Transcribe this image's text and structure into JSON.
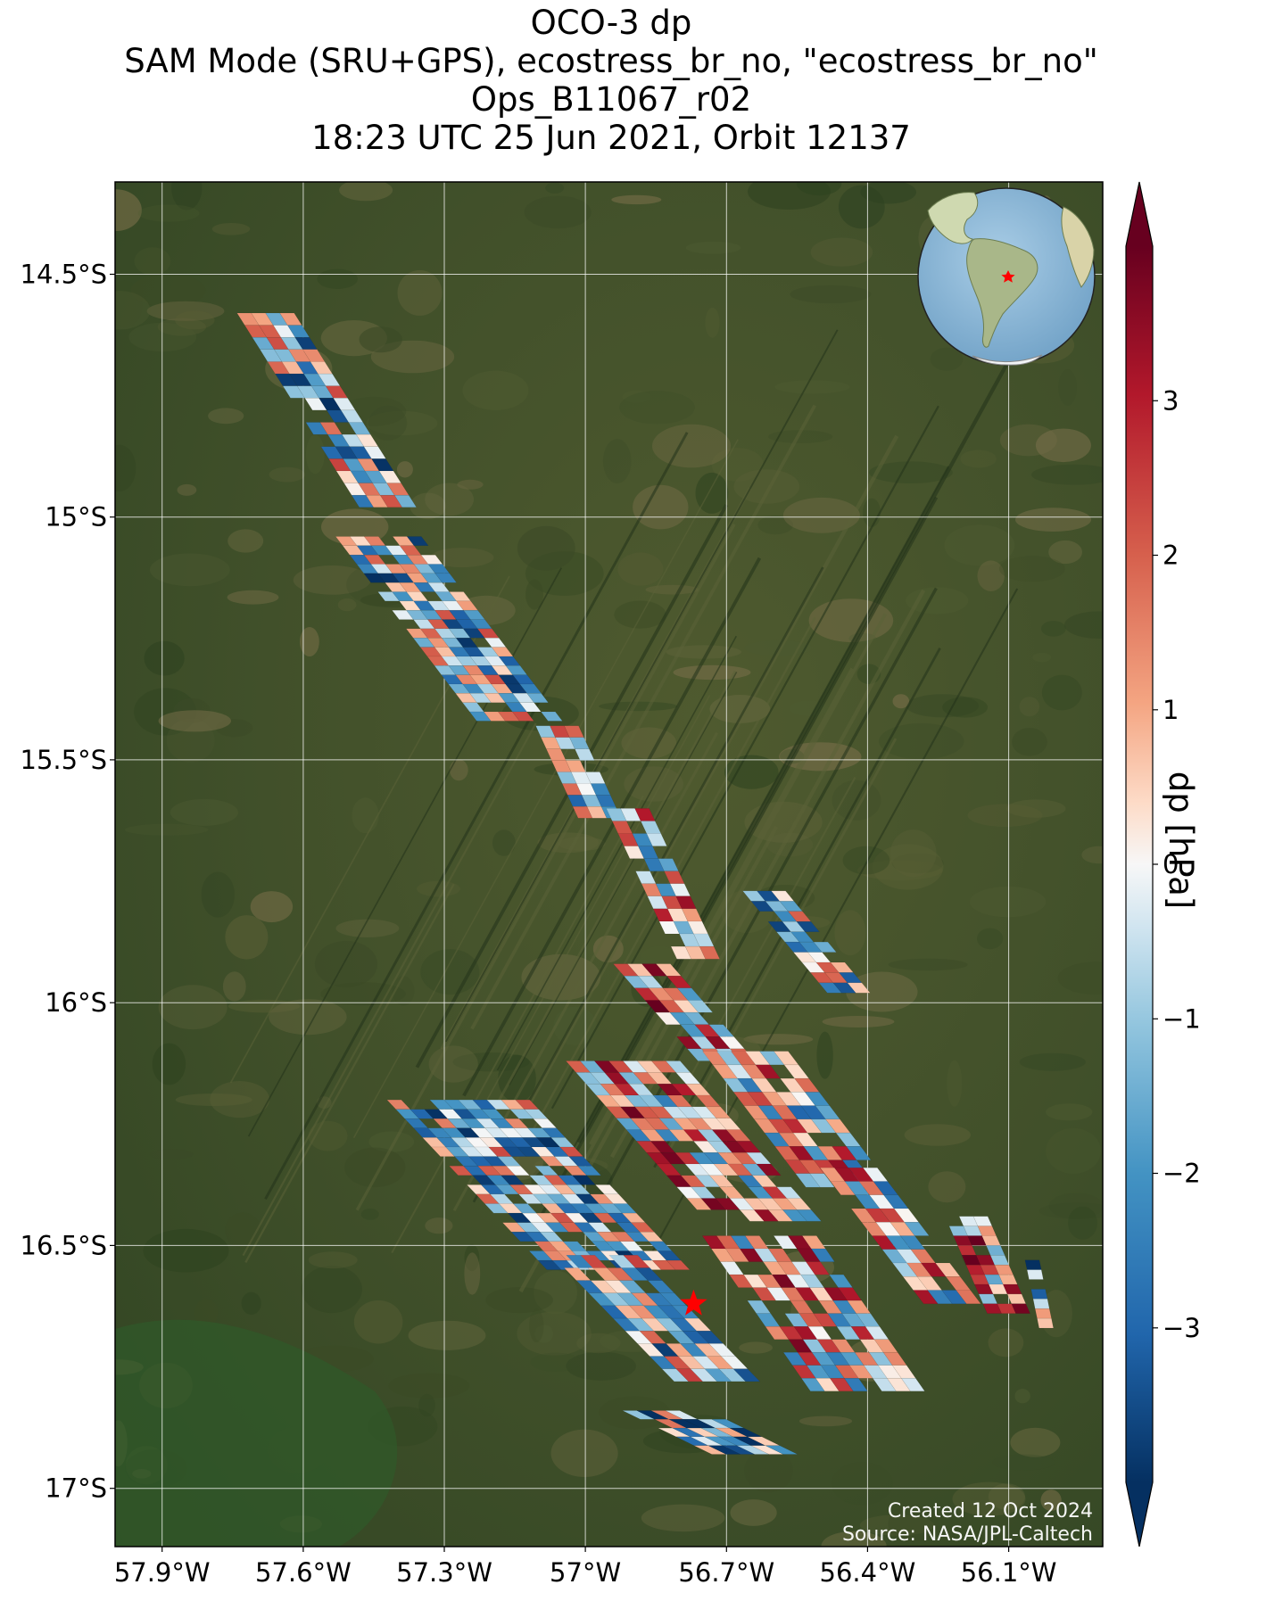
{
  "title": {
    "line1": "OCO-3 dp",
    "line2": "SAM Mode (SRU+GPS), ecostress_br_no, \"ecostress_br_no\"",
    "line3": "Ops_B11067_r02",
    "line4": "18:23 UTC 25 Jun 2021, Orbit 12137"
  },
  "credits": {
    "created": "Created 12 Oct 2024",
    "source": "Source: NASA/JPL-Caltech"
  },
  "colors": {
    "negative_extreme": "#053061",
    "neutral": "#f7f7f7",
    "positive_extreme": "#67001f",
    "target_marker": "#ff0000",
    "grid": "#ffffff"
  },
  "chart_data": {
    "type": "heatmap",
    "title": "OCO-3 dp",
    "variable": "dp",
    "colorbar_label": "dp [hPa]",
    "colormap": "RdBu_r",
    "colorbar_range": [
      -4,
      4
    ],
    "colorbar_extend": "both",
    "colorbar_ticks": [
      3,
      2,
      1,
      0,
      -1,
      -2,
      -3
    ],
    "colorbar_tick_labels": [
      "3",
      "2",
      "1",
      "0",
      "−1",
      "−2",
      "−3"
    ],
    "xlim": [
      -58.0,
      -55.9
    ],
    "ylim": [
      -17.12,
      -14.31
    ],
    "x_ticks": [
      -57.9,
      -57.6,
      -57.3,
      -57.0,
      -56.7,
      -56.4,
      -56.1
    ],
    "x_tick_labels": [
      "57.9°W",
      "57.6°W",
      "57.3°W",
      "57°W",
      "56.7°W",
      "56.4°W",
      "56.1°W"
    ],
    "y_ticks": [
      -14.5,
      -15.0,
      -15.5,
      -16.0,
      -16.5,
      -17.0
    ],
    "y_tick_labels": [
      "14.5°S",
      "15°S",
      "15.5°S",
      "16°S",
      "16.5°S",
      "17°S"
    ],
    "grid": true,
    "background": "satellite imagery",
    "inset": "globe centered on South America with red star at target",
    "target": {
      "lon": -56.77,
      "lat": -16.62,
      "marker": "star"
    },
    "swaths": [
      {
        "lon0": -57.68,
        "lat0": -14.58,
        "lon1": -57.42,
        "lat1": -14.98,
        "rows": 16,
        "cols": 4,
        "bias": -0.8
      },
      {
        "lon0": -57.44,
        "lat0": -15.04,
        "lon1": -57.14,
        "lat1": -15.42,
        "rows": 20,
        "cols": 6,
        "bias": -0.9
      },
      {
        "lon0": -57.06,
        "lat0": -15.43,
        "lon1": -56.97,
        "lat1": -15.62,
        "rows": 8,
        "cols": 3,
        "bias": 0.2
      },
      {
        "lon0": -56.91,
        "lat0": -15.6,
        "lon1": -56.76,
        "lat1": -15.91,
        "rows": 12,
        "cols": 3,
        "bias": 0.6
      },
      {
        "lon0": -56.62,
        "lat0": -15.77,
        "lon1": -56.44,
        "lat1": -15.98,
        "rows": 10,
        "cols": 3,
        "bias": -0.8
      },
      {
        "lon0": -56.88,
        "lat0": -15.92,
        "lon1": -56.7,
        "lat1": -16.12,
        "rows": 8,
        "cols": 4,
        "bias": 1.2
      },
      {
        "lon0": -57.27,
        "lat0": -16.2,
        "lon1": -56.93,
        "lat1": -16.55,
        "rows": 18,
        "cols": 10,
        "bias": -0.9
      },
      {
        "lon0": -56.92,
        "lat0": -16.12,
        "lon1": -56.62,
        "lat1": -16.45,
        "rows": 14,
        "cols": 8,
        "bias": 0.7
      },
      {
        "lon0": -56.66,
        "lat0": -16.1,
        "lon1": -56.44,
        "lat1": -16.38,
        "rows": 10,
        "cols": 6,
        "bias": 0.2
      },
      {
        "lon0": -56.63,
        "lat0": -16.48,
        "lon1": -56.4,
        "lat1": -16.8,
        "rows": 12,
        "cols": 8,
        "bias": 0.6
      },
      {
        "lon0": -56.98,
        "lat0": -16.52,
        "lon1": -56.72,
        "lat1": -16.78,
        "rows": 10,
        "cols": 6,
        "bias": -0.6
      },
      {
        "lon0": -56.44,
        "lat0": -16.34,
        "lon1": -56.22,
        "lat1": -16.62,
        "rows": 10,
        "cols": 4,
        "bias": 0.2
      },
      {
        "lon0": -56.19,
        "lat0": -16.44,
        "lon1": -56.1,
        "lat1": -16.64,
        "rows": 10,
        "cols": 3,
        "bias": 1.6
      },
      {
        "lon0": -56.05,
        "lat0": -16.53,
        "lon1": -56.02,
        "lat1": -16.67,
        "rows": 7,
        "cols": 1,
        "bias": -1.2
      },
      {
        "lon0": -56.83,
        "lat0": -16.84,
        "lon1": -56.64,
        "lat1": -16.93,
        "rows": 5,
        "cols": 6,
        "bias": -1.4
      }
    ]
  }
}
